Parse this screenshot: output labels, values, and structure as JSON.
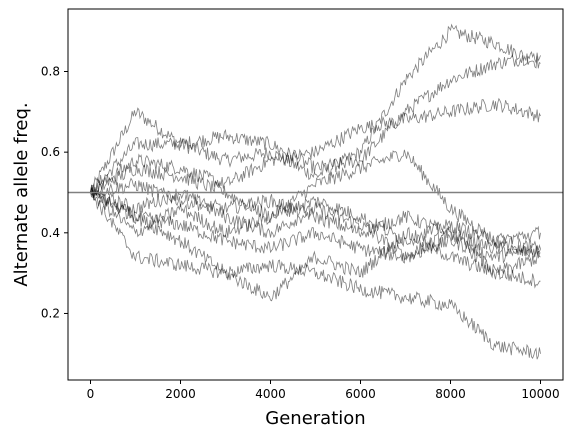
{
  "chart_data": {
    "type": "line",
    "title": "",
    "xlabel": "Generation",
    "ylabel": "Alternate allele freq.",
    "xlim": [
      -500,
      10500
    ],
    "ylim": [
      0.035,
      0.955
    ],
    "xticks": [
      0,
      2000,
      4000,
      6000,
      8000,
      10000
    ],
    "xtick_labels": [
      "0",
      "2000",
      "4000",
      "6000",
      "8000",
      "10000"
    ],
    "yticks": [
      0.2,
      0.4,
      0.6,
      0.8
    ],
    "ytick_labels": [
      "0.2",
      "0.4",
      "0.6",
      "0.8"
    ],
    "grid": false,
    "legend": "none",
    "reference_line": {
      "y": 0.5,
      "color": "#808080"
    },
    "series_color": "#000000",
    "series_opacity": 0.5,
    "x": [
      0,
      1000,
      2000,
      3000,
      4000,
      5000,
      6000,
      7000,
      8000,
      9000,
      10000
    ],
    "series": [
      {
        "values": [
          0.5,
          0.7,
          0.62,
          0.58,
          0.6,
          0.54,
          0.6,
          0.78,
          0.9,
          0.87,
          0.82
        ]
      },
      {
        "values": [
          0.5,
          0.62,
          0.62,
          0.64,
          0.62,
          0.56,
          0.58,
          0.7,
          0.78,
          0.82,
          0.84
        ]
      },
      {
        "values": [
          0.5,
          0.58,
          0.56,
          0.52,
          0.58,
          0.6,
          0.66,
          0.68,
          0.7,
          0.72,
          0.69
        ]
      },
      {
        "values": [
          0.5,
          0.56,
          0.54,
          0.5,
          0.44,
          0.52,
          0.56,
          0.6,
          0.46,
          0.38,
          0.36
        ]
      },
      {
        "values": [
          0.5,
          0.46,
          0.5,
          0.44,
          0.4,
          0.46,
          0.42,
          0.34,
          0.38,
          0.34,
          0.36
        ]
      },
      {
        "values": [
          0.5,
          0.52,
          0.48,
          0.46,
          0.48,
          0.44,
          0.4,
          0.44,
          0.4,
          0.36,
          0.35
        ]
      },
      {
        "values": [
          0.5,
          0.44,
          0.42,
          0.38,
          0.36,
          0.4,
          0.36,
          0.34,
          0.4,
          0.3,
          0.34
        ]
      },
      {
        "values": [
          0.5,
          0.44,
          0.38,
          0.3,
          0.24,
          0.34,
          0.3,
          0.4,
          0.34,
          0.3,
          0.28
        ]
      },
      {
        "values": [
          0.5,
          0.34,
          0.32,
          0.3,
          0.32,
          0.3,
          0.26,
          0.24,
          0.22,
          0.12,
          0.1
        ]
      },
      {
        "values": [
          0.5,
          0.4,
          0.46,
          0.4,
          0.44,
          0.48,
          0.44,
          0.38,
          0.42,
          0.38,
          0.4
        ]
      }
    ]
  }
}
